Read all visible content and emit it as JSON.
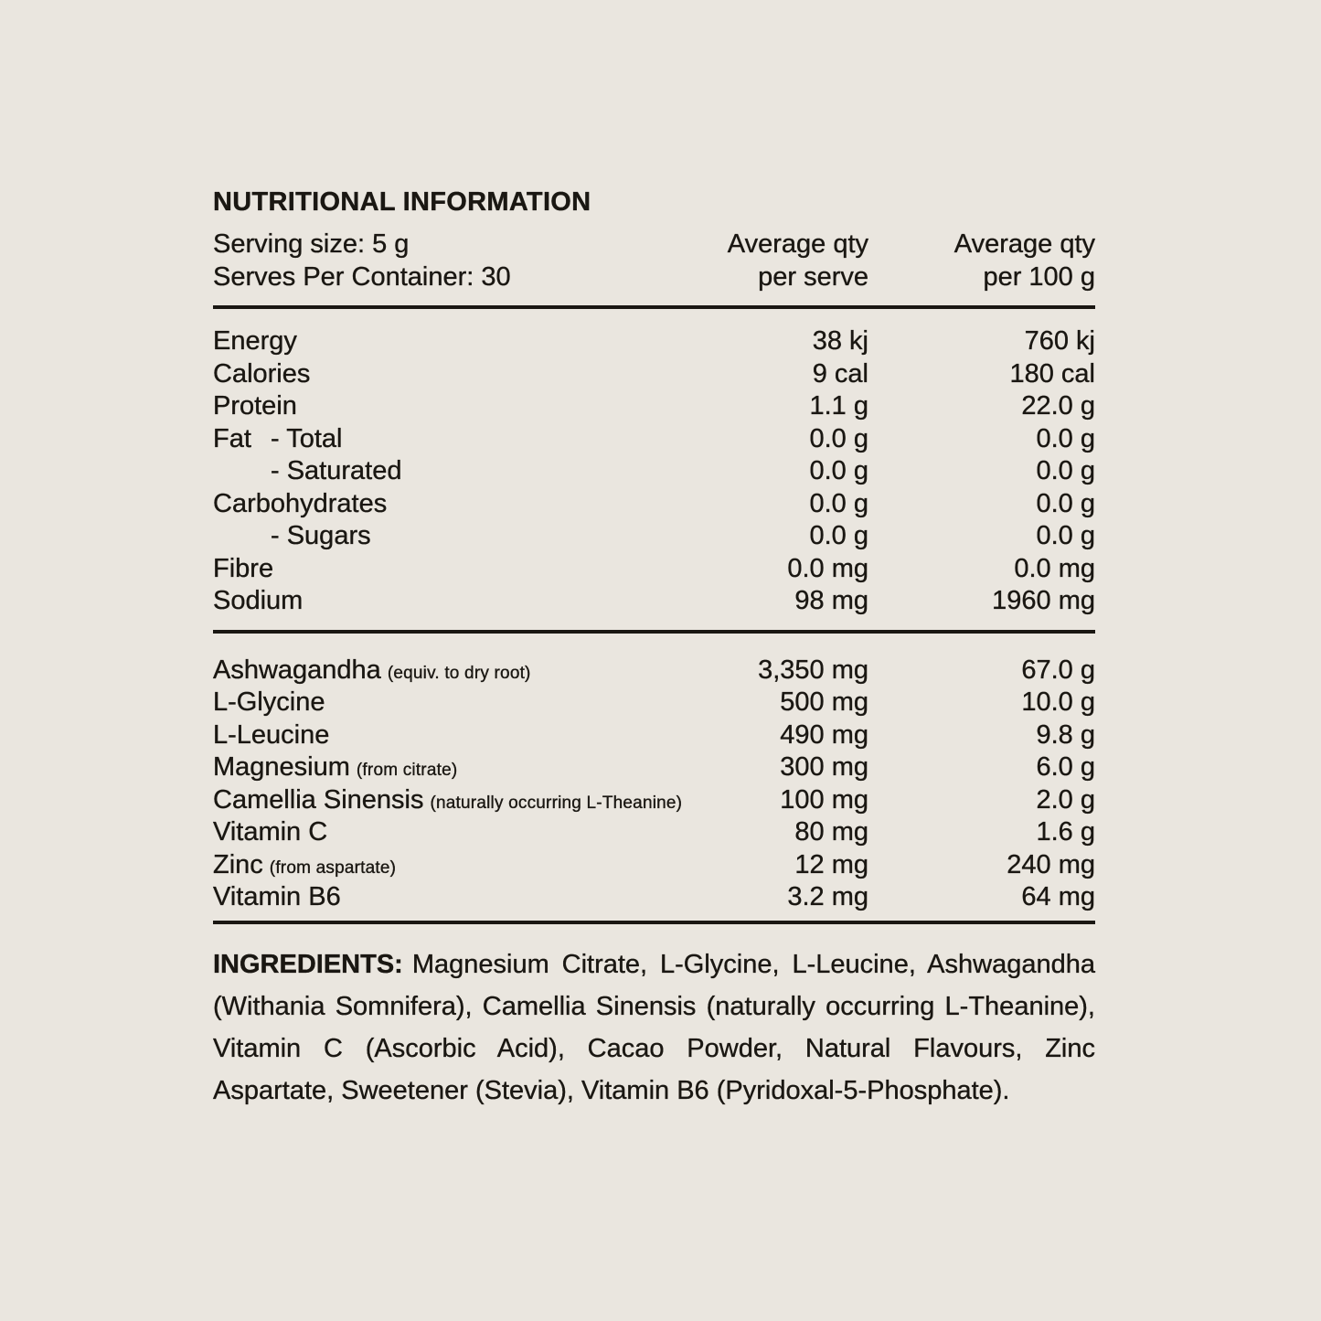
{
  "colors": {
    "background": "#eae6df",
    "text": "#1a1712",
    "rule": "#1a1712"
  },
  "panel": {
    "title": "NUTRITIONAL INFORMATION",
    "serving_size": "Serving size: 5 g",
    "serves_per_container": "Serves Per Container: 30",
    "col_per_serve_line1": "Average qty",
    "col_per_serve_line2": "per serve",
    "col_per_100g_line1": "Average qty",
    "col_per_100g_line2": "per 100 g"
  },
  "nutrients": [
    {
      "label": "Energy",
      "sub": "",
      "note": "",
      "per_serve": "38 kj",
      "per_100g": "760 kj"
    },
    {
      "label": "Calories",
      "sub": "",
      "note": "",
      "per_serve": "9 cal",
      "per_100g": "180 cal"
    },
    {
      "label": "Protein",
      "sub": "",
      "note": "",
      "per_serve": "1.1 g",
      "per_100g": "22.0 g"
    },
    {
      "label": "Fat",
      "sub": "- Total",
      "note": "",
      "per_serve": "0.0 g",
      "per_100g": "0.0 g"
    },
    {
      "label": "",
      "sub": "- Saturated",
      "note": "",
      "per_serve": "0.0 g",
      "per_100g": "0.0 g"
    },
    {
      "label": "Carbohydrates",
      "sub": "",
      "note": "",
      "per_serve": "0.0 g",
      "per_100g": "0.0 g"
    },
    {
      "label": "",
      "sub": "- Sugars",
      "note": "",
      "per_serve": "0.0 g",
      "per_100g": "0.0 g"
    },
    {
      "label": "Fibre",
      "sub": "",
      "note": "",
      "per_serve": "0.0 mg",
      "per_100g": "0.0 mg"
    },
    {
      "label": "Sodium",
      "sub": "",
      "note": "",
      "per_serve": "98 mg",
      "per_100g": "1960 mg"
    }
  ],
  "actives": [
    {
      "label": "Ashwagandha",
      "sub": "",
      "note": "(equiv. to dry root)",
      "per_serve": "3,350 mg",
      "per_100g": "67.0 g"
    },
    {
      "label": "L-Glycine",
      "sub": "",
      "note": "",
      "per_serve": "500 mg",
      "per_100g": "10.0 g"
    },
    {
      "label": "L-Leucine",
      "sub": "",
      "note": "",
      "per_serve": "490 mg",
      "per_100g": "9.8 g"
    },
    {
      "label": "Magnesium",
      "sub": "",
      "note": "(from citrate)",
      "per_serve": "300 mg",
      "per_100g": "6.0 g"
    },
    {
      "label": "Camellia Sinensis",
      "sub": "",
      "note": "(naturally occurring L-Theanine)",
      "per_serve": "100 mg",
      "per_100g": "2.0 g"
    },
    {
      "label": "Vitamin C",
      "sub": "",
      "note": "",
      "per_serve": "80 mg",
      "per_100g": "1.6 g"
    },
    {
      "label": "Zinc",
      "sub": "",
      "note": "(from aspartate)",
      "per_serve": "12 mg",
      "per_100g": "240 mg"
    },
    {
      "label": "Vitamin B6",
      "sub": "",
      "note": "",
      "per_serve": "3.2 mg",
      "per_100g": "64 mg"
    }
  ],
  "ingredients": {
    "heading": "INGREDIENTS:",
    "text": "Magnesium Citrate, L-Glycine, L-Leucine, Ashwagandha (Withania Somnifera), Camellia Sinensis (naturally occurring L-Theanine), Vitamin C (Ascorbic Acid), Cacao Powder, Natural Flavours, Zinc Aspartate, Sweetener (Stevia), Vitamin B6 (Pyridoxal-5-Phosphate)."
  }
}
